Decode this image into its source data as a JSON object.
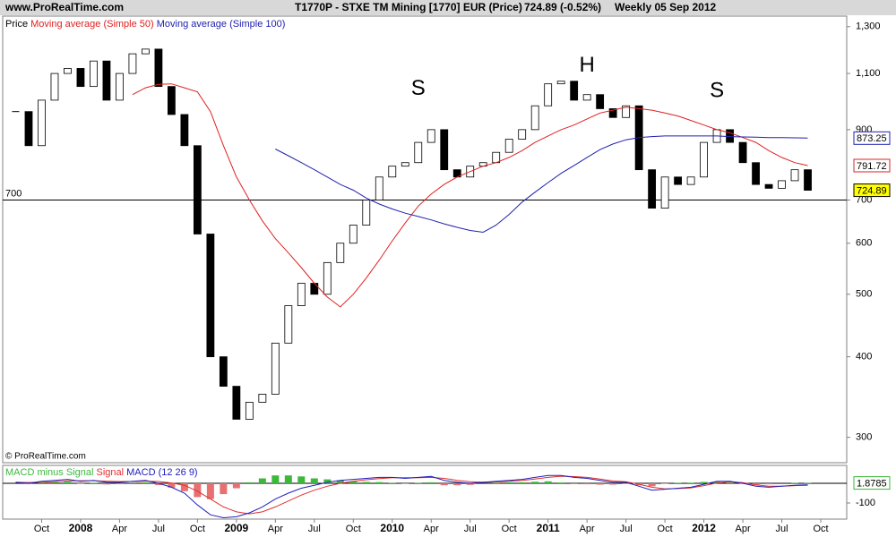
{
  "header": {
    "site": "www.ProRealTime.com",
    "title": "T1770P - STXE TM Mining [1770] EUR (Price)",
    "last_quote": "724.89 (-0.52%)",
    "period": "Weekly  05 Sep 2012",
    "footer": "© ProRealTime.com"
  },
  "chart_data": [
    {
      "type": "candlestick",
      "log_scale": true,
      "x": [
        "2007-08",
        "2007-09",
        "2007-10",
        "2007-11",
        "2007-12",
        "2008-01",
        "2008-02",
        "2008-03",
        "2008-04",
        "2008-05",
        "2008-06",
        "2008-07",
        "2008-08",
        "2008-09",
        "2008-10",
        "2008-11",
        "2008-12",
        "2009-01",
        "2009-02",
        "2009-03",
        "2009-04",
        "2009-05",
        "2009-06",
        "2009-07",
        "2009-08",
        "2009-09",
        "2009-10",
        "2009-11",
        "2009-12",
        "2010-01",
        "2010-02",
        "2010-03",
        "2010-04",
        "2010-05",
        "2010-06",
        "2010-07",
        "2010-08",
        "2010-09",
        "2010-10",
        "2010-11",
        "2010-12",
        "2011-01",
        "2011-02",
        "2011-03",
        "2011-04",
        "2011-05",
        "2011-06",
        "2011-07",
        "2011-08",
        "2011-09",
        "2011-10",
        "2011-11",
        "2011-12",
        "2012-01",
        "2012-02",
        "2012-03",
        "2012-04",
        "2012-05",
        "2012-06",
        "2012-07",
        "2012-08",
        "2012-09"
      ],
      "series": [
        {
          "name": "Price",
          "color": "#000000",
          "up_color": "#ffffff",
          "down_color": "#000000",
          "values": [
            960,
            850,
            1000,
            1100,
            1120,
            1050,
            1150,
            1000,
            1100,
            1180,
            1200,
            1050,
            950,
            850,
            620,
            400,
            360,
            320,
            340,
            350,
            420,
            480,
            520,
            500,
            560,
            600,
            640,
            700,
            760,
            790,
            800,
            860,
            900,
            780,
            760,
            790,
            800,
            830,
            870,
            900,
            980,
            1060,
            1070,
            1000,
            1020,
            970,
            940,
            980,
            780,
            680,
            760,
            740,
            760,
            860,
            900,
            860,
            800,
            740,
            730,
            750,
            780,
            724.89
          ]
        },
        {
          "name": "Moving average (Simple 50)",
          "color": "#e02020",
          "values": [
            null,
            null,
            null,
            null,
            null,
            null,
            null,
            null,
            null,
            1020,
            1045,
            1058,
            1060,
            1045,
            1030,
            960,
            850,
            760,
            700,
            650,
            610,
            580,
            550,
            520,
            495,
            478,
            500,
            530,
            565,
            605,
            645,
            685,
            715,
            740,
            760,
            775,
            790,
            800,
            815,
            835,
            860,
            880,
            900,
            915,
            935,
            955,
            965,
            975,
            970,
            965,
            955,
            945,
            930,
            915,
            900,
            890,
            875,
            860,
            835,
            815,
            800,
            791.72
          ]
        },
        {
          "name": "Moving average (Simple 100)",
          "color": "#2020b0",
          "values": [
            null,
            null,
            null,
            null,
            null,
            null,
            null,
            null,
            null,
            null,
            null,
            null,
            null,
            null,
            null,
            null,
            null,
            null,
            null,
            null,
            840,
            820,
            800,
            780,
            760,
            740,
            725,
            705,
            690,
            678,
            668,
            660,
            652,
            643,
            635,
            628,
            624,
            640,
            665,
            695,
            720,
            745,
            770,
            792,
            815,
            838,
            855,
            868,
            875,
            878,
            880,
            880,
            880,
            880,
            880,
            878,
            877,
            876,
            875,
            875,
            874,
            873.25
          ]
        }
      ],
      "ylim": [
        274,
        1350
      ],
      "yticks": [
        {
          "value": 1300,
          "label": "1,300"
        },
        {
          "value": 1100,
          "label": "1,100"
        },
        900,
        700,
        600,
        500,
        400,
        300
      ],
      "xlim": [
        "2007-07",
        "2012-12"
      ],
      "reference_line": 700,
      "annotations": [
        {
          "text": "S",
          "x": "2010-03",
          "y": 1040
        },
        {
          "text": "H",
          "x": "2011-04",
          "y": 1130
        },
        {
          "text": "S",
          "x": "2012-02",
          "y": 1032
        }
      ]
    },
    {
      "type": "macd",
      "x": [
        "2007-08",
        "2007-09",
        "2007-10",
        "2007-11",
        "2007-12",
        "2008-01",
        "2008-02",
        "2008-03",
        "2008-04",
        "2008-05",
        "2008-06",
        "2008-07",
        "2008-08",
        "2008-09",
        "2008-10",
        "2008-11",
        "2008-12",
        "2009-01",
        "2009-02",
        "2009-03",
        "2009-04",
        "2009-05",
        "2009-06",
        "2009-07",
        "2009-08",
        "2009-09",
        "2009-10",
        "2009-11",
        "2009-12",
        "2010-01",
        "2010-02",
        "2010-03",
        "2010-04",
        "2010-05",
        "2010-06",
        "2010-07",
        "2010-08",
        "2010-09",
        "2010-10",
        "2010-11",
        "2010-12",
        "2011-01",
        "2011-02",
        "2011-03",
        "2011-04",
        "2011-05",
        "2011-06",
        "2011-07",
        "2011-08",
        "2011-09",
        "2011-10",
        "2011-11",
        "2011-12",
        "2012-01",
        "2012-02",
        "2012-03",
        "2012-04",
        "2012-05",
        "2012-06",
        "2012-07",
        "2012-08",
        "2012-09"
      ],
      "series": [
        {
          "name": "MACD minus Signal",
          "kind": "bar",
          "color": "#3cb83c",
          "negative_color": "#e87070",
          "values": [
            0,
            -4,
            5,
            7,
            8,
            -3,
            2,
            -6,
            -4,
            1,
            4,
            -9,
            -22,
            -40,
            -70,
            -80,
            -55,
            -25,
            5,
            25,
            40,
            40,
            35,
            25,
            20,
            15,
            10,
            7,
            6,
            2,
            -3,
            2,
            5,
            -10,
            -10,
            -8,
            0,
            3,
            5,
            5,
            8,
            10,
            4,
            -4,
            -5,
            -7,
            -7,
            -3,
            -10,
            -15,
            -2,
            2,
            3,
            7,
            8,
            3,
            -3,
            -7,
            -5,
            0,
            2,
            1.8785
          ]
        },
        {
          "name": "Signal",
          "kind": "line",
          "color": "#e03030",
          "values": [
            5,
            4,
            5,
            8,
            12,
            13,
            13,
            11,
            9,
            9,
            11,
            9,
            2,
            -10,
            -40,
            -80,
            -120,
            -145,
            -155,
            -145,
            -120,
            -90,
            -60,
            -35,
            -15,
            0,
            10,
            18,
            24,
            28,
            28,
            28,
            30,
            25,
            15,
            8,
            5,
            7,
            10,
            15,
            22,
            30,
            36,
            34,
            30,
            22,
            12,
            8,
            -5,
            -20,
            -28,
            -27,
            -23,
            -12,
            2,
            7,
            3,
            -8,
            -15,
            -15,
            -12,
            -10
          ]
        },
        {
          "name": "MACD (12 26 9)",
          "kind": "line",
          "color": "#2020c0",
          "values": [
            5,
            0,
            10,
            15,
            20,
            10,
            15,
            5,
            5,
            10,
            15,
            0,
            -20,
            -50,
            -110,
            -160,
            -175,
            -170,
            -150,
            -120,
            -80,
            -50,
            -25,
            -10,
            5,
            15,
            20,
            25,
            30,
            30,
            25,
            30,
            35,
            15,
            5,
            0,
            5,
            10,
            15,
            20,
            30,
            40,
            40,
            30,
            25,
            15,
            5,
            5,
            -15,
            -35,
            -30,
            -25,
            -20,
            -5,
            10,
            10,
            0,
            -15,
            -20,
            -15,
            -10,
            -8.1215
          ]
        }
      ],
      "ylim": [
        -182,
        91
      ],
      "yticks": [
        -100
      ],
      "reference_line": 0,
      "xlim": [
        "2007-07",
        "2012-12"
      ],
      "xticks": [
        {
          "value": "2007-10",
          "label": "Oct"
        },
        {
          "value": "2008-01",
          "label": "2008"
        },
        {
          "value": "2008-04",
          "label": "Apr"
        },
        {
          "value": "2008-07",
          "label": "Jul"
        },
        {
          "value": "2008-10",
          "label": "Oct"
        },
        {
          "value": "2009-01",
          "label": "2009"
        },
        {
          "value": "2009-04",
          "label": "Apr"
        },
        {
          "value": "2009-07",
          "label": "Jul"
        },
        {
          "value": "2009-10",
          "label": "Oct"
        },
        {
          "value": "2010-01",
          "label": "2010"
        },
        {
          "value": "2010-04",
          "label": "Apr"
        },
        {
          "value": "2010-07",
          "label": "Jul"
        },
        {
          "value": "2010-10",
          "label": "Oct"
        },
        {
          "value": "2011-01",
          "label": "2011"
        },
        {
          "value": "2011-04",
          "label": "Apr"
        },
        {
          "value": "2011-07",
          "label": "Jul"
        },
        {
          "value": "2011-10",
          "label": "Oct"
        },
        {
          "value": "2012-01",
          "label": "2012"
        },
        {
          "value": "2012-04",
          "label": "Apr"
        },
        {
          "value": "2012-07",
          "label": "Jul"
        },
        {
          "value": "2012-10",
          "label": "Oct"
        }
      ]
    }
  ]
}
